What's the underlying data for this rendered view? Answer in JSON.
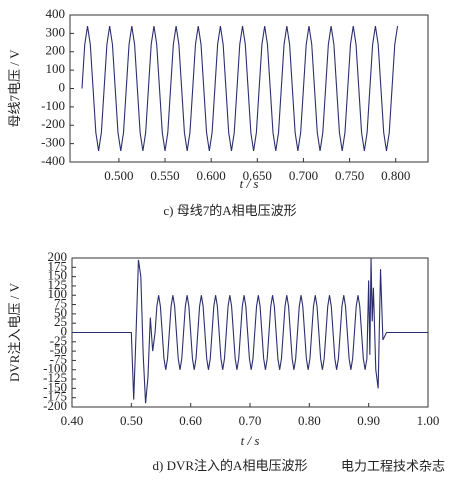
{
  "chart_data": [
    {
      "type": "line",
      "ylabel": "母线7电压 / V",
      "xlabel": "t / s",
      "caption": "c)  母线7的A相电压波形",
      "color": "#2b2f6e",
      "xlim": [
        0.447,
        0.835
      ],
      "ylim": [
        -400,
        400
      ],
      "xticks": [
        {
          "value": 0.5,
          "label": "0.500"
        },
        {
          "value": 0.55,
          "label": "0.550"
        },
        {
          "value": 0.6,
          "label": "0.600"
        },
        {
          "value": 0.65,
          "label": "0.650"
        },
        {
          "value": 0.7,
          "label": "0.700"
        },
        {
          "value": 0.75,
          "label": "0.750"
        },
        {
          "value": 0.8,
          "label": "0.800"
        }
      ],
      "yticks": [
        400,
        300,
        200,
        100,
        0,
        -100,
        -200,
        -300,
        -400
      ],
      "x": [
        0.46,
        0.463,
        0.466,
        0.469,
        0.472,
        0.475,
        0.478,
        0.481,
        0.484,
        0.487,
        0.49,
        0.493,
        0.496,
        0.499,
        0.502,
        0.505,
        0.508,
        0.511,
        0.514,
        0.517,
        0.52,
        0.523,
        0.526,
        0.529,
        0.532,
        0.535,
        0.538,
        0.541,
        0.544,
        0.547,
        0.55,
        0.553,
        0.556,
        0.559,
        0.562,
        0.565,
        0.568,
        0.571,
        0.574,
        0.577,
        0.58,
        0.583,
        0.586,
        0.589,
        0.592,
        0.595,
        0.598,
        0.601,
        0.604,
        0.607,
        0.61,
        0.613,
        0.616,
        0.619,
        0.622,
        0.625,
        0.628,
        0.631,
        0.634,
        0.637,
        0.64,
        0.643,
        0.646,
        0.649,
        0.652,
        0.655,
        0.658,
        0.661,
        0.664,
        0.667,
        0.67,
        0.673,
        0.676,
        0.679,
        0.682,
        0.685,
        0.688,
        0.691,
        0.694,
        0.697,
        0.7,
        0.703,
        0.706,
        0.709,
        0.712,
        0.715,
        0.718,
        0.721,
        0.724,
        0.727,
        0.73,
        0.733,
        0.736,
        0.739,
        0.742,
        0.745,
        0.748,
        0.751,
        0.754,
        0.757,
        0.76,
        0.763,
        0.766,
        0.769,
        0.772,
        0.775,
        0.778,
        0.781,
        0.784,
        0.787,
        0.79,
        0.793,
        0.796,
        0.799,
        0.802
      ],
      "values": [
        0,
        240,
        340,
        240,
        0,
        -240,
        -340,
        -240,
        0,
        240,
        340,
        240,
        0,
        -240,
        -340,
        -240,
        0,
        240,
        340,
        240,
        0,
        -240,
        -340,
        -240,
        0,
        240,
        340,
        240,
        0,
        -240,
        -340,
        -240,
        0,
        240,
        340,
        240,
        0,
        -240,
        -340,
        -240,
        0,
        240,
        340,
        240,
        0,
        -240,
        -340,
        -240,
        0,
        240,
        340,
        240,
        0,
        -240,
        -340,
        -240,
        0,
        240,
        340,
        240,
        0,
        -240,
        -340,
        -240,
        0,
        240,
        340,
        240,
        0,
        -240,
        -340,
        -240,
        0,
        240,
        340,
        240,
        0,
        -240,
        -340,
        -240,
        0,
        240,
        340,
        240,
        0,
        -240,
        -340,
        -240,
        0,
        240,
        340,
        240,
        0,
        -240,
        -340,
        -240,
        0,
        240,
        340,
        240,
        0,
        -240,
        -340,
        -240,
        0,
        240,
        340,
        240,
        0,
        -240,
        -340,
        -240,
        0,
        240,
        340
      ]
    },
    {
      "type": "line",
      "ylabel": "DVR注入电压 / V",
      "xlabel": "t / s",
      "caption": "d)  DVR注入的A相电压波形",
      "watermark": "电力工程技术杂志",
      "color": "#2b2f6e",
      "xlim": [
        0.4,
        1.0
      ],
      "ylim": [
        -200,
        200
      ],
      "xticks": [
        {
          "value": 0.4,
          "label": "0.40"
        },
        {
          "value": 0.5,
          "label": "0.50"
        },
        {
          "value": 0.6,
          "label": "0.60"
        },
        {
          "value": 0.7,
          "label": "0.70"
        },
        {
          "value": 0.8,
          "label": "0.80"
        },
        {
          "value": 0.9,
          "label": "0.90"
        },
        {
          "value": 1.0,
          "label": "1.00"
        }
      ],
      "yticks": [
        200,
        175,
        150,
        125,
        100,
        75,
        50,
        25,
        0,
        -25,
        -50,
        -75,
        -100,
        -125,
        -150,
        -175,
        -200
      ],
      "x": [
        0.4,
        0.5,
        0.504,
        0.508,
        0.512,
        0.516,
        0.52,
        0.524,
        0.528,
        0.532,
        0.536,
        0.54,
        0.543,
        0.546,
        0.549,
        0.552,
        0.555,
        0.558,
        0.561,
        0.564,
        0.567,
        0.57,
        0.573,
        0.576,
        0.579,
        0.582,
        0.585,
        0.588,
        0.591,
        0.594,
        0.597,
        0.6,
        0.603,
        0.606,
        0.609,
        0.612,
        0.615,
        0.618,
        0.621,
        0.624,
        0.627,
        0.63,
        0.633,
        0.636,
        0.639,
        0.642,
        0.645,
        0.648,
        0.651,
        0.654,
        0.657,
        0.66,
        0.663,
        0.666,
        0.669,
        0.672,
        0.675,
        0.678,
        0.681,
        0.684,
        0.687,
        0.69,
        0.693,
        0.696,
        0.699,
        0.702,
        0.705,
        0.708,
        0.711,
        0.714,
        0.717,
        0.72,
        0.723,
        0.726,
        0.729,
        0.732,
        0.735,
        0.738,
        0.741,
        0.744,
        0.747,
        0.75,
        0.753,
        0.756,
        0.759,
        0.762,
        0.765,
        0.768,
        0.771,
        0.774,
        0.777,
        0.78,
        0.783,
        0.786,
        0.789,
        0.792,
        0.795,
        0.798,
        0.801,
        0.804,
        0.807,
        0.81,
        0.813,
        0.816,
        0.819,
        0.822,
        0.825,
        0.828,
        0.831,
        0.834,
        0.837,
        0.84,
        0.843,
        0.846,
        0.849,
        0.852,
        0.855,
        0.858,
        0.861,
        0.864,
        0.867,
        0.87,
        0.873,
        0.876,
        0.879,
        0.882,
        0.885,
        0.888,
        0.891,
        0.894,
        0.897,
        0.9,
        0.902,
        0.904,
        0.906,
        0.908,
        0.912,
        0.916,
        0.92,
        0.924,
        0.93,
        1.0
      ],
      "values": [
        0,
        0,
        -180,
        0,
        195,
        150,
        -60,
        -190,
        -120,
        40,
        -50,
        0,
        70,
        100,
        70,
        0,
        -70,
        -100,
        -70,
        0,
        70,
        100,
        70,
        0,
        -70,
        -100,
        -70,
        0,
        70,
        100,
        70,
        0,
        -70,
        -100,
        -70,
        0,
        70,
        100,
        70,
        0,
        -70,
        -100,
        -70,
        0,
        70,
        100,
        70,
        0,
        -70,
        -100,
        -70,
        0,
        70,
        100,
        70,
        0,
        -70,
        -100,
        -70,
        0,
        70,
        100,
        70,
        0,
        -70,
        -100,
        -70,
        0,
        70,
        100,
        70,
        0,
        -70,
        -100,
        -70,
        0,
        70,
        100,
        70,
        0,
        -70,
        -100,
        -70,
        0,
        70,
        100,
        70,
        0,
        -70,
        -100,
        -70,
        0,
        70,
        100,
        70,
        0,
        -70,
        -100,
        -70,
        0,
        70,
        100,
        70,
        0,
        -70,
        -100,
        -70,
        0,
        70,
        100,
        70,
        0,
        -70,
        -100,
        -70,
        0,
        70,
        100,
        70,
        0,
        -70,
        -100,
        -70,
        0,
        70,
        100,
        70,
        0,
        -70,
        -100,
        -70,
        140,
        -60,
        200,
        30,
        120,
        -100,
        -150,
        170,
        -20,
        0,
        0
      ]
    }
  ]
}
